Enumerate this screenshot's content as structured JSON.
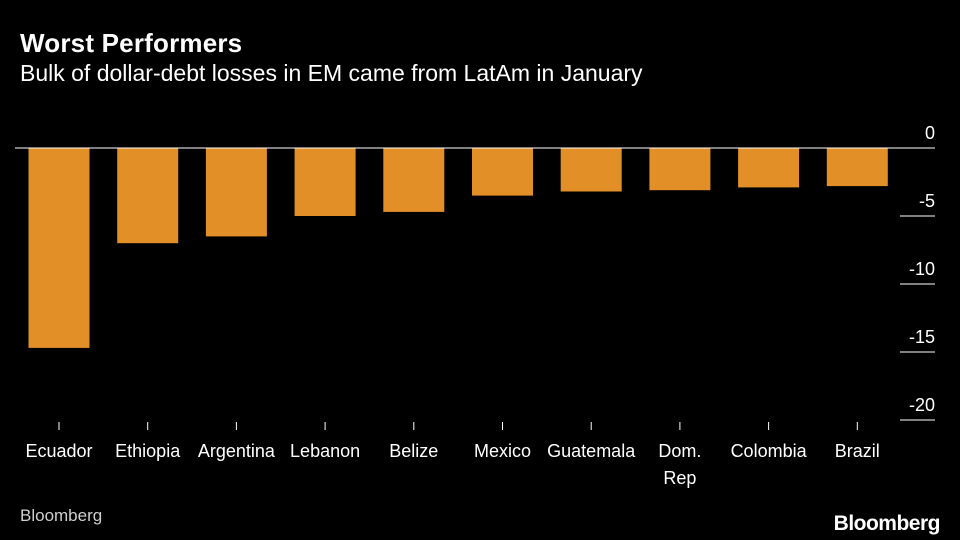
{
  "header": {
    "title": "Worst Performers",
    "subtitle": "Bulk of dollar-debt losses in EM came from LatAm in January"
  },
  "footer": {
    "source": "Bloomberg",
    "brand": "Bloomberg"
  },
  "colors": {
    "bar": "#E18F26",
    "background": "#000000",
    "text": "#FFFFFF",
    "axis": "#FFFFFF"
  },
  "chart_data": {
    "type": "bar",
    "title": "Worst Performers",
    "subtitle": "Bulk of dollar-debt losses in EM came from LatAm in January",
    "categories": [
      "Ecuador",
      "Ethiopia",
      "Argentina",
      "Lebanon",
      "Belize",
      "Mexico",
      "Guatemala",
      "Dom. Rep",
      "Colombia",
      "Brazil"
    ],
    "category_lines": [
      [
        "Ecuador"
      ],
      [
        "Ethiopia"
      ],
      [
        "Argentina"
      ],
      [
        "Lebanon"
      ],
      [
        "Belize"
      ],
      [
        "Mexico"
      ],
      [
        "Guatemala"
      ],
      [
        "Dom.",
        "Rep"
      ],
      [
        "Colombia"
      ],
      [
        "Brazil"
      ]
    ],
    "values": [
      -14.7,
      -7.0,
      -6.5,
      -5.0,
      -4.7,
      -3.5,
      -3.2,
      -3.1,
      -2.9,
      -2.8
    ],
    "xlabel": "",
    "ylabel": "",
    "ylim": [
      -20,
      0
    ],
    "yticks": [
      0,
      -5,
      -10,
      -15,
      -20
    ],
    "ytick_labels": [
      "0",
      "-5",
      "-10",
      "-15",
      "-20"
    ],
    "grid": false,
    "legend": "none"
  }
}
